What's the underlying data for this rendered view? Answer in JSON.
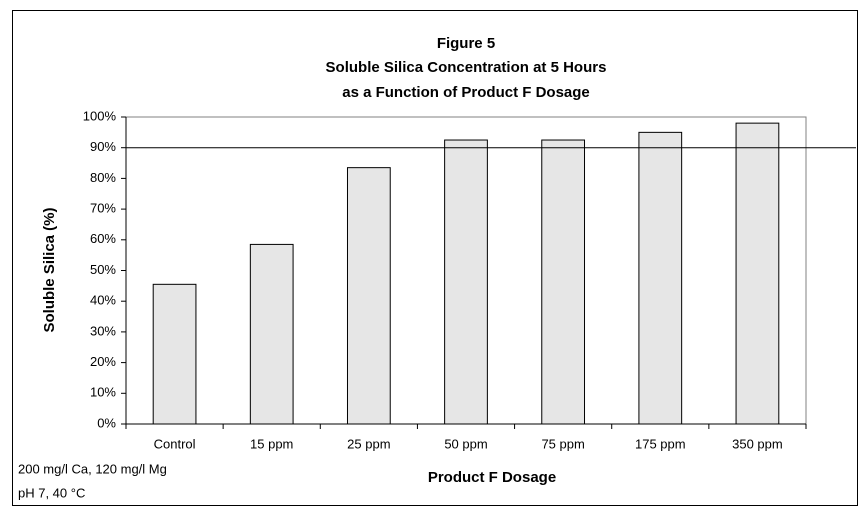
{
  "chart_data": {
    "type": "bar",
    "title": [
      "Figure 5",
      "Soluble Silica Concentration at 5 Hours",
      "as a Function of Product F Dosage"
    ],
    "x_label": "Product F Dosage",
    "y_label": "Soluble Silica (%)",
    "annotations": [
      "200 mg/l Ca, 120 mg/l Mg",
      "pH 7, 40 °C"
    ],
    "categories": [
      "Control",
      "15 ppm",
      "25 ppm",
      "50 ppm",
      "75 ppm",
      "175 ppm",
      "350 ppm"
    ],
    "values": [
      45.5,
      58.5,
      83.5,
      92.5,
      92.5,
      95,
      98
    ],
    "color": "#e6e6e6",
    "reference_line": 90,
    "ylim": [
      0,
      100
    ],
    "yticks": [
      {
        "value": 0,
        "label": "0%"
      },
      {
        "value": 10,
        "label": "10%"
      },
      {
        "value": 20,
        "label": "20%"
      },
      {
        "value": 30,
        "label": "30%"
      },
      {
        "value": 40,
        "label": "40%"
      },
      {
        "value": 50,
        "label": "50%"
      },
      {
        "value": 60,
        "label": "60%"
      },
      {
        "value": 70,
        "label": "70%"
      },
      {
        "value": 80,
        "label": "80%"
      },
      {
        "value": 90,
        "label": "90%"
      },
      {
        "value": 100,
        "label": "100%"
      }
    ],
    "grid": false
  }
}
